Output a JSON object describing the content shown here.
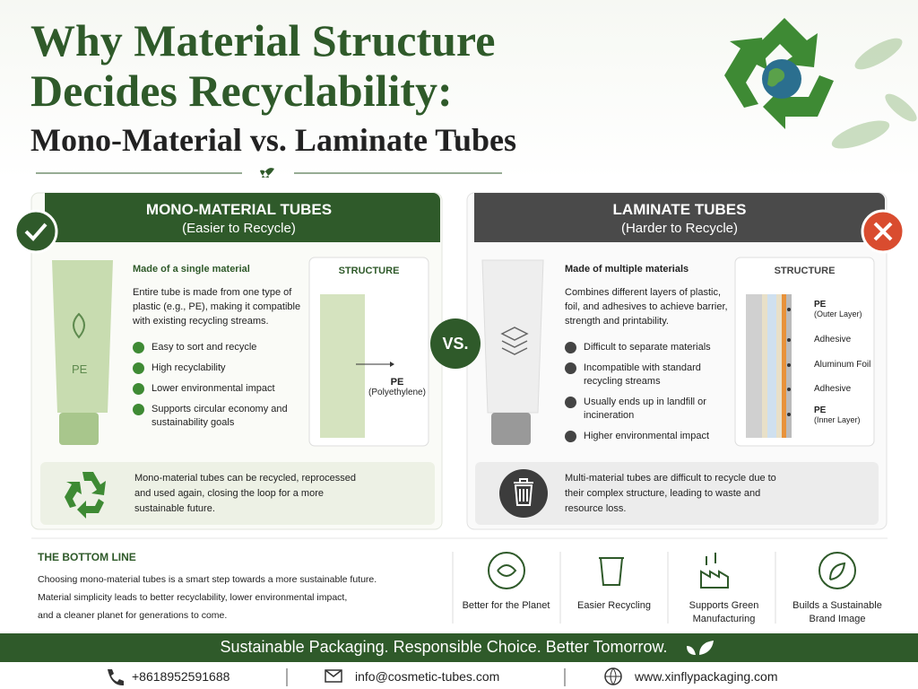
{
  "header": {
    "title_line1": "Why Material Structure",
    "title_line2": "Decides Recyclability:",
    "subtitle": "Mono-Material vs. Laminate Tubes"
  },
  "mono": {
    "heading": "MONO-MATERIAL TUBES",
    "subheading": "(Easier to Recycle)",
    "tube_label": "PE",
    "lead": "Made of a single material",
    "description": "Entire tube is made from one type of plastic (e.g., PE), making it compatible with existing recycling streams.",
    "points": [
      "Easy to sort and recycle",
      "High recyclability",
      "Lower environmental impact",
      "Supports circular economy and sustainability goals"
    ],
    "structure_title": "STRUCTURE",
    "layer": {
      "name": "PE",
      "detail": "(Polyethylene)"
    },
    "summary": "Mono-material tubes can be recycled, reprocessed and used again, closing the loop for a more sustainable future."
  },
  "vs": "VS.",
  "laminate": {
    "heading": "LAMINATE TUBES",
    "subheading": "(Harder to Recycle)",
    "lead": "Made of multiple materials",
    "description": "Combines different layers of plastic, foil, and adhesives to achieve barrier, strength and printability.",
    "points": [
      "Difficult to separate materials",
      "Incompatible with standard recycling streams",
      "Usually ends up in landfill or incineration",
      "Higher environmental impact"
    ],
    "structure_title": "STRUCTURE",
    "layers": [
      {
        "name": "PE",
        "detail": "(Outer Layer)"
      },
      {
        "name": "Adhesive"
      },
      {
        "name": "Aluminum Foil"
      },
      {
        "name": "Adhesive"
      },
      {
        "name": "PE",
        "detail": "(Inner Layer)"
      }
    ],
    "summary": "Multi-material tubes are difficult to recycle due to their complex structure, leading to waste and resource loss."
  },
  "bottom_line": {
    "title": "THE BOTTOM LINE",
    "lines": [
      "Choosing mono-material tubes is a smart step towards a more sustainable future.",
      "Material simplicity leads to better recyclability, lower environmental impact,",
      "and a cleaner planet for generations to come."
    ],
    "benefits": [
      "Better for the Planet",
      "Easier Recycling",
      "Supports Green Manufacturing",
      "Builds a Sustainable Brand Image"
    ]
  },
  "tagline": "Sustainable Packaging. Responsible Choice. Better Tomorrow.",
  "contacts": {
    "phone": "+8618952591688",
    "email": "info@cosmetic-tubes.com",
    "website": "www.xinflypackaging.com"
  }
}
